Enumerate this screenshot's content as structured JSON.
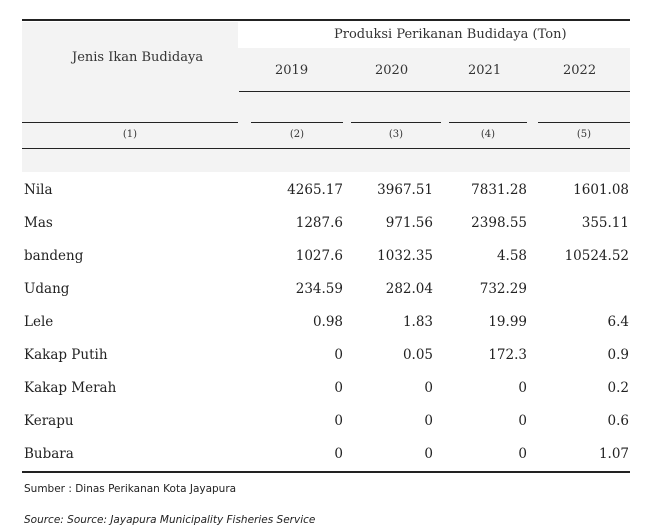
{
  "table": {
    "row_header": "Jenis Ikan Budidaya",
    "group_header": "Produksi Perikanan Budidaya (Ton)",
    "years": [
      "2019",
      "2020",
      "2021",
      "2022"
    ],
    "column_numbers": [
      "(1)",
      "(2)",
      "(3)",
      "(4)",
      "(5)"
    ],
    "rows": [
      {
        "name": "Nila",
        "values": [
          "4265.17",
          "3967.51",
          "7831.28",
          "1601.08"
        ]
      },
      {
        "name": "Mas",
        "values": [
          "1287.6",
          "971.56",
          "2398.55",
          "355.11"
        ]
      },
      {
        "name": "bandeng",
        "values": [
          "1027.6",
          "1032.35",
          "4.58",
          "10524.52"
        ]
      },
      {
        "name": "Udang",
        "values": [
          "234.59",
          "282.04",
          "732.29",
          ""
        ]
      },
      {
        "name": "Lele",
        "values": [
          "0.98",
          "1.83",
          "19.99",
          "6.4"
        ]
      },
      {
        "name": "Kakap Putih",
        "values": [
          "0",
          "0.05",
          "172.3",
          "0.9"
        ]
      },
      {
        "name": "Kakap Merah",
        "values": [
          "0",
          "0",
          "0",
          "0.2"
        ]
      },
      {
        "name": "Kerapu",
        "values": [
          "0",
          "0",
          "0",
          "0.6"
        ]
      },
      {
        "name": "Bubara",
        "values": [
          "0",
          "0",
          "0",
          "1.07"
        ]
      }
    ]
  },
  "notes": {
    "source_id": "Sumber : Dinas Perikanan Kota Jayapura",
    "source_en": "Source: Source: Jayapura Municipality Fisheries Service"
  }
}
